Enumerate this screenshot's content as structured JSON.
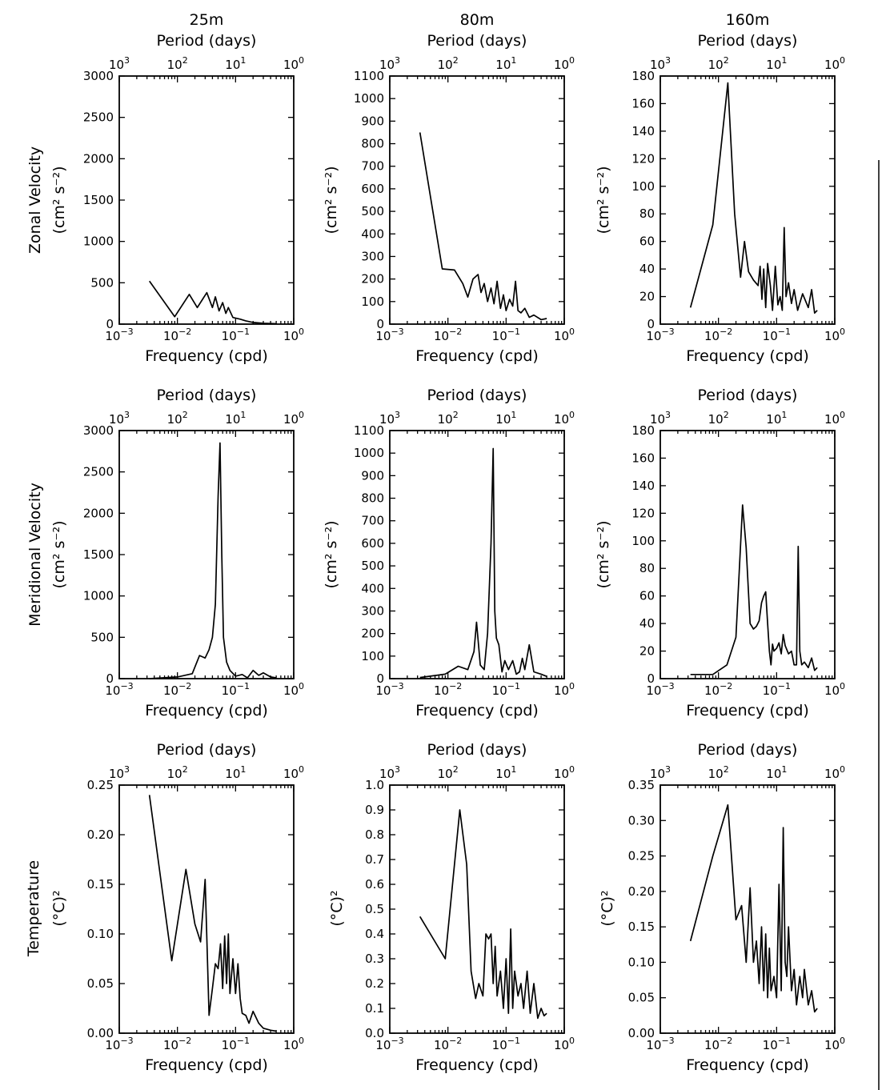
{
  "depth_headers": [
    "25m",
    "80m",
    "160m"
  ],
  "row_labels": [
    {
      "line1": "Zonal Velocity",
      "line2": "(cm² s⁻²)"
    },
    {
      "line1": "Meridional Velocity",
      "line2": "(cm² s⁻²)"
    },
    {
      "line1": "Temperature",
      "line2": "(°C)²"
    }
  ],
  "unit_label_velocity": "(cm² s⁻²)",
  "unit_label_temperature": "(°C)²",
  "top_axis_label": "Period (days)",
  "bottom_axis_label": "Frequency (cpd)",
  "chart_data": [
    {
      "type": "line",
      "row": 0,
      "col": 0,
      "depth": "25m",
      "quantity": "Zonal Velocity",
      "xlabel": "Frequency (cpd)",
      "x2label": "Period (days)",
      "xscale": "log",
      "xlim": [
        0.001,
        1
      ],
      "ylim": [
        0,
        3000
      ],
      "yticks": [
        0,
        500,
        1000,
        1500,
        2000,
        2500,
        3000
      ],
      "ytick_decimals": 0,
      "x": [
        0.0033,
        0.009,
        0.016,
        0.022,
        0.032,
        0.04,
        0.045,
        0.052,
        0.06,
        0.068,
        0.075,
        0.09,
        0.12,
        0.15,
        0.2,
        0.3,
        0.5
      ],
      "y": [
        520,
        90,
        360,
        200,
        380,
        200,
        330,
        160,
        260,
        130,
        200,
        80,
        60,
        40,
        20,
        10,
        5
      ]
    },
    {
      "type": "line",
      "row": 0,
      "col": 1,
      "depth": "80m",
      "quantity": "Zonal Velocity",
      "xlabel": "Frequency (cpd)",
      "x2label": "Period (days)",
      "xscale": "log",
      "xlim": [
        0.001,
        1
      ],
      "ylim": [
        0,
        1100
      ],
      "yticks": [
        0,
        100,
        200,
        300,
        400,
        500,
        600,
        700,
        800,
        900,
        1000,
        1100
      ],
      "ytick_decimals": 0,
      "x": [
        0.0033,
        0.008,
        0.013,
        0.018,
        0.022,
        0.027,
        0.033,
        0.037,
        0.042,
        0.048,
        0.055,
        0.062,
        0.07,
        0.08,
        0.09,
        0.1,
        0.115,
        0.13,
        0.145,
        0.16,
        0.18,
        0.21,
        0.25,
        0.3,
        0.4,
        0.5
      ],
      "y": [
        850,
        245,
        240,
        180,
        120,
        200,
        220,
        140,
        180,
        100,
        160,
        90,
        190,
        70,
        130,
        60,
        110,
        80,
        190,
        60,
        50,
        70,
        30,
        40,
        20,
        25
      ]
    },
    {
      "type": "line",
      "row": 0,
      "col": 2,
      "depth": "160m",
      "quantity": "Zonal Velocity",
      "xlabel": "Frequency (cpd)",
      "x2label": "Period (days)",
      "xscale": "log",
      "xlim": [
        0.001,
        1
      ],
      "ylim": [
        0,
        180
      ],
      "yticks": [
        0,
        20,
        40,
        60,
        80,
        100,
        120,
        140,
        160,
        180
      ],
      "ytick_decimals": 0,
      "x": [
        0.0033,
        0.008,
        0.0145,
        0.019,
        0.024,
        0.028,
        0.033,
        0.04,
        0.048,
        0.052,
        0.056,
        0.06,
        0.065,
        0.07,
        0.078,
        0.085,
        0.095,
        0.105,
        0.115,
        0.125,
        0.135,
        0.145,
        0.16,
        0.18,
        0.2,
        0.23,
        0.28,
        0.35,
        0.4,
        0.45,
        0.5
      ],
      "y": [
        12,
        72,
        175,
        80,
        34,
        60,
        38,
        32,
        28,
        42,
        18,
        40,
        12,
        44,
        28,
        10,
        42,
        14,
        20,
        10,
        70,
        20,
        30,
        15,
        25,
        10,
        22,
        12,
        25,
        8,
        10
      ]
    },
    {
      "type": "line",
      "row": 1,
      "col": 0,
      "depth": "25m",
      "quantity": "Meridional Velocity",
      "xlabel": "Frequency (cpd)",
      "x2label": "Period (days)",
      "xscale": "log",
      "xlim": [
        0.001,
        1
      ],
      "ylim": [
        0,
        3000
      ],
      "yticks": [
        0,
        500,
        1000,
        1500,
        2000,
        2500,
        3000
      ],
      "ytick_decimals": 0,
      "x": [
        0.0033,
        0.01,
        0.018,
        0.024,
        0.03,
        0.035,
        0.04,
        0.045,
        0.05,
        0.054,
        0.058,
        0.062,
        0.07,
        0.08,
        0.1,
        0.13,
        0.16,
        0.2,
        0.25,
        0.3,
        0.4,
        0.5
      ],
      "y": [
        0,
        20,
        60,
        280,
        250,
        350,
        500,
        900,
        2200,
        2850,
        1500,
        500,
        200,
        100,
        30,
        50,
        10,
        100,
        40,
        70,
        20,
        10
      ]
    },
    {
      "type": "line",
      "row": 1,
      "col": 1,
      "depth": "80m",
      "quantity": "Meridional Velocity",
      "xlabel": "Frequency (cpd)",
      "x2label": "Period (days)",
      "xscale": "log",
      "xlim": [
        0.001,
        1
      ],
      "ylim": [
        0,
        1100
      ],
      "yticks": [
        0,
        100,
        200,
        300,
        400,
        500,
        600,
        700,
        800,
        900,
        1000,
        1100
      ],
      "ytick_decimals": 0,
      "x": [
        0.0033,
        0.009,
        0.015,
        0.022,
        0.028,
        0.031,
        0.036,
        0.042,
        0.048,
        0.055,
        0.06,
        0.064,
        0.068,
        0.075,
        0.085,
        0.095,
        0.11,
        0.13,
        0.15,
        0.17,
        0.19,
        0.21,
        0.25,
        0.3,
        0.4,
        0.5
      ],
      "y": [
        5,
        20,
        55,
        40,
        120,
        250,
        60,
        40,
        200,
        600,
        1020,
        300,
        180,
        150,
        30,
        80,
        40,
        80,
        20,
        30,
        90,
        40,
        150,
        30,
        20,
        10
      ]
    },
    {
      "type": "line",
      "row": 1,
      "col": 2,
      "depth": "160m",
      "quantity": "Meridional Velocity",
      "xlabel": "Frequency (cpd)",
      "x2label": "Period (days)",
      "xscale": "log",
      "xlim": [
        0.001,
        1
      ],
      "ylim": [
        0,
        180
      ],
      "yticks": [
        0,
        20,
        40,
        60,
        80,
        100,
        120,
        140,
        160,
        180
      ],
      "ytick_decimals": 0,
      "x": [
        0.0033,
        0.008,
        0.014,
        0.02,
        0.026,
        0.03,
        0.035,
        0.04,
        0.045,
        0.05,
        0.055,
        0.06,
        0.065,
        0.07,
        0.075,
        0.08,
        0.085,
        0.09,
        0.1,
        0.11,
        0.12,
        0.13,
        0.14,
        0.16,
        0.18,
        0.2,
        0.22,
        0.235,
        0.25,
        0.27,
        0.3,
        0.35,
        0.4,
        0.45,
        0.5
      ],
      "y": [
        3,
        3,
        10,
        30,
        126,
        95,
        40,
        36,
        38,
        42,
        55,
        60,
        63,
        40,
        20,
        10,
        25,
        20,
        22,
        26,
        18,
        32,
        24,
        18,
        20,
        10,
        10,
        96,
        20,
        10,
        12,
        8,
        15,
        6,
        8
      ]
    },
    {
      "type": "line",
      "row": 2,
      "col": 0,
      "depth": "25m",
      "quantity": "Temperature",
      "xlabel": "Frequency (cpd)",
      "x2label": "Period (days)",
      "xscale": "log",
      "xlim": [
        0.001,
        1
      ],
      "ylim": [
        0,
        0.25
      ],
      "yticks": [
        0,
        0.05,
        0.1,
        0.15,
        0.2,
        0.25
      ],
      "ytick_decimals": 2,
      "x": [
        0.0033,
        0.008,
        0.014,
        0.02,
        0.025,
        0.03,
        0.035,
        0.04,
        0.045,
        0.05,
        0.055,
        0.06,
        0.065,
        0.07,
        0.075,
        0.08,
        0.09,
        0.1,
        0.11,
        0.12,
        0.13,
        0.15,
        0.17,
        0.2,
        0.25,
        0.3,
        0.4,
        0.5
      ],
      "y": [
        0.24,
        0.073,
        0.165,
        0.11,
        0.092,
        0.155,
        0.018,
        0.045,
        0.07,
        0.065,
        0.09,
        0.045,
        0.098,
        0.05,
        0.1,
        0.04,
        0.075,
        0.04,
        0.07,
        0.035,
        0.02,
        0.018,
        0.01,
        0.022,
        0.01,
        0.005,
        0.003,
        0.002
      ]
    },
    {
      "type": "line",
      "row": 2,
      "col": 1,
      "depth": "80m",
      "quantity": "Temperature",
      "xlabel": "Frequency (cpd)",
      "x2label": "Period (days)",
      "xscale": "log",
      "xlim": [
        0.001,
        1
      ],
      "ylim": [
        0,
        1.0
      ],
      "yticks": [
        0,
        0.1,
        0.2,
        0.3,
        0.4,
        0.5,
        0.6,
        0.7,
        0.8,
        0.9,
        1.0
      ],
      "ytick_decimals": 1,
      "x": [
        0.0033,
        0.009,
        0.016,
        0.021,
        0.025,
        0.03,
        0.034,
        0.04,
        0.045,
        0.05,
        0.055,
        0.06,
        0.065,
        0.07,
        0.08,
        0.09,
        0.1,
        0.11,
        0.12,
        0.13,
        0.14,
        0.16,
        0.18,
        0.2,
        0.23,
        0.26,
        0.3,
        0.35,
        0.4,
        0.45,
        0.5
      ],
      "y": [
        0.47,
        0.3,
        0.9,
        0.68,
        0.25,
        0.14,
        0.2,
        0.15,
        0.4,
        0.38,
        0.4,
        0.2,
        0.35,
        0.15,
        0.25,
        0.1,
        0.3,
        0.08,
        0.42,
        0.1,
        0.25,
        0.15,
        0.2,
        0.1,
        0.25,
        0.08,
        0.2,
        0.06,
        0.1,
        0.07,
        0.08
      ]
    },
    {
      "type": "line",
      "row": 2,
      "col": 2,
      "depth": "160m",
      "quantity": "Temperature",
      "xlabel": "Frequency (cpd)",
      "x2label": "Period (days)",
      "xscale": "log",
      "xlim": [
        0.001,
        1
      ],
      "ylim": [
        0,
        0.35
      ],
      "yticks": [
        0,
        0.05,
        0.1,
        0.15,
        0.2,
        0.25,
        0.3,
        0.35
      ],
      "ytick_decimals": 2,
      "x": [
        0.0033,
        0.008,
        0.0145,
        0.02,
        0.025,
        0.03,
        0.035,
        0.04,
        0.045,
        0.05,
        0.055,
        0.06,
        0.065,
        0.07,
        0.075,
        0.08,
        0.09,
        0.1,
        0.11,
        0.12,
        0.13,
        0.14,
        0.15,
        0.16,
        0.18,
        0.2,
        0.22,
        0.25,
        0.28,
        0.3,
        0.35,
        0.4,
        0.45,
        0.5
      ],
      "y": [
        0.13,
        0.25,
        0.322,
        0.16,
        0.18,
        0.1,
        0.205,
        0.1,
        0.13,
        0.07,
        0.15,
        0.06,
        0.14,
        0.05,
        0.12,
        0.06,
        0.08,
        0.05,
        0.21,
        0.06,
        0.29,
        0.1,
        0.08,
        0.15,
        0.06,
        0.09,
        0.04,
        0.08,
        0.05,
        0.09,
        0.04,
        0.06,
        0.03,
        0.035
      ]
    }
  ]
}
